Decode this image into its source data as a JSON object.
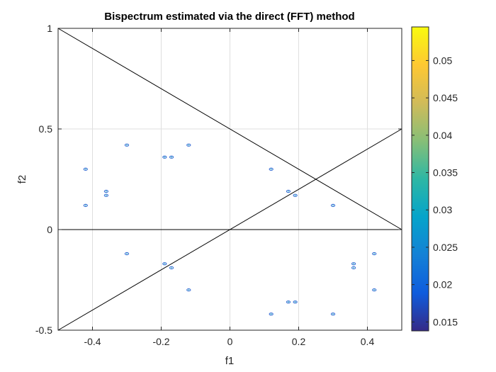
{
  "chart_data": {
    "type": "scatter",
    "title": "Bispectrum estimated via the direct (FFT) method",
    "xlabel": "f1",
    "ylabel": "f2",
    "xlim": [
      -0.5,
      0.5
    ],
    "ylim": [
      -0.5,
      1
    ],
    "grid": true,
    "x_ticks": [
      -0.4,
      -0.2,
      0,
      0.2,
      0.4
    ],
    "x_tick_labels": [
      "-0.4",
      "-0.2",
      "0",
      "0.2",
      "0.4"
    ],
    "y_ticks": [
      -0.5,
      0,
      0.5,
      1
    ],
    "y_tick_labels": [
      "-0.5",
      "0",
      "0.5",
      "1"
    ],
    "points": [
      {
        "x": -0.42,
        "y": 0.3
      },
      {
        "x": -0.42,
        "y": 0.12
      },
      {
        "x": -0.36,
        "y": 0.19
      },
      {
        "x": -0.36,
        "y": 0.17
      },
      {
        "x": -0.3,
        "y": 0.42
      },
      {
        "x": -0.19,
        "y": 0.36
      },
      {
        "x": -0.17,
        "y": 0.36
      },
      {
        "x": -0.12,
        "y": 0.42
      },
      {
        "x": 0.12,
        "y": 0.3
      },
      {
        "x": 0.17,
        "y": 0.19
      },
      {
        "x": 0.19,
        "y": 0.17
      },
      {
        "x": 0.3,
        "y": 0.12
      },
      {
        "x": -0.3,
        "y": -0.12
      },
      {
        "x": -0.19,
        "y": -0.17
      },
      {
        "x": -0.17,
        "y": -0.19
      },
      {
        "x": -0.12,
        "y": -0.3
      },
      {
        "x": 0.12,
        "y": -0.42
      },
      {
        "x": 0.17,
        "y": -0.36
      },
      {
        "x": 0.19,
        "y": -0.36
      },
      {
        "x": 0.3,
        "y": -0.42
      },
      {
        "x": 0.36,
        "y": -0.17
      },
      {
        "x": 0.36,
        "y": -0.19
      },
      {
        "x": 0.42,
        "y": -0.12
      },
      {
        "x": 0.42,
        "y": -0.3
      }
    ],
    "point_color": "#3b6fd6",
    "reference_lines": [
      {
        "x1": -0.5,
        "y1": 1,
        "x2": 0.5,
        "y2": 0
      },
      {
        "x1": -0.5,
        "y1": -0.5,
        "x2": 0.5,
        "y2": 0.5
      },
      {
        "x1": -0.5,
        "y1": 0,
        "x2": 0.5,
        "y2": 0
      }
    ],
    "colorbar": {
      "colormap": "parula",
      "range": [
        0.0138,
        0.0545
      ],
      "ticks": [
        0.015,
        0.02,
        0.025,
        0.03,
        0.035,
        0.04,
        0.045,
        0.05
      ],
      "tick_labels": [
        "0.015",
        "0.02",
        "0.025",
        "0.03",
        "0.035",
        "0.04",
        "0.045",
        "0.05"
      ],
      "colors": [
        "#352a87",
        "#0f5cdd",
        "#1481d6",
        "#06a4ca",
        "#2eb7a4",
        "#87bf77",
        "#d1bb59",
        "#fec832",
        "#f9fb0e"
      ]
    }
  }
}
